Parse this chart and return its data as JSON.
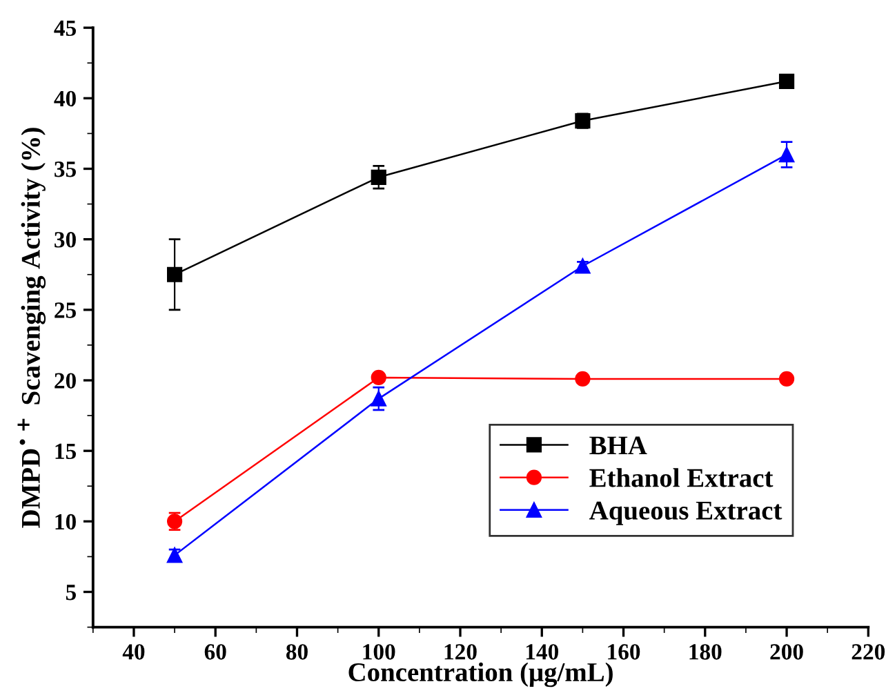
{
  "chart_data": {
    "type": "line",
    "xlabel": "Concentration (μg/mL)",
    "ylabel": "DMPD$^{•+}$ Scavenging Activity (%)",
    "x": [
      50,
      100,
      150,
      200
    ],
    "series": [
      {
        "name": "BHA",
        "color": "#000000",
        "marker": "square",
        "values": [
          27.5,
          34.4,
          38.4,
          41.2
        ],
        "errors": [
          2.5,
          0.8,
          0.5,
          0.2
        ]
      },
      {
        "name": "Ethanol Extract",
        "color": "#ff0000",
        "marker": "circle",
        "values": [
          10.0,
          20.2,
          20.1,
          20.1
        ],
        "errors": [
          0.6,
          0.2,
          0.2,
          0.2
        ]
      },
      {
        "name": "Aqueous Extract",
        "color": "#0000ff",
        "marker": "triangle",
        "values": [
          7.6,
          18.7,
          28.1,
          36.0
        ],
        "errors": [
          0.4,
          0.8,
          0.3,
          0.9
        ]
      }
    ],
    "xlim": [
      30,
      220
    ],
    "xticks": [
      40,
      60,
      80,
      100,
      120,
      140,
      160,
      180,
      200,
      220
    ],
    "ylim": [
      2.5,
      45
    ],
    "yticks": [
      5,
      10,
      15,
      20,
      25,
      30,
      35,
      40,
      45
    ],
    "grid": false,
    "legend": "bottom right",
    "line_style": "solid"
  }
}
